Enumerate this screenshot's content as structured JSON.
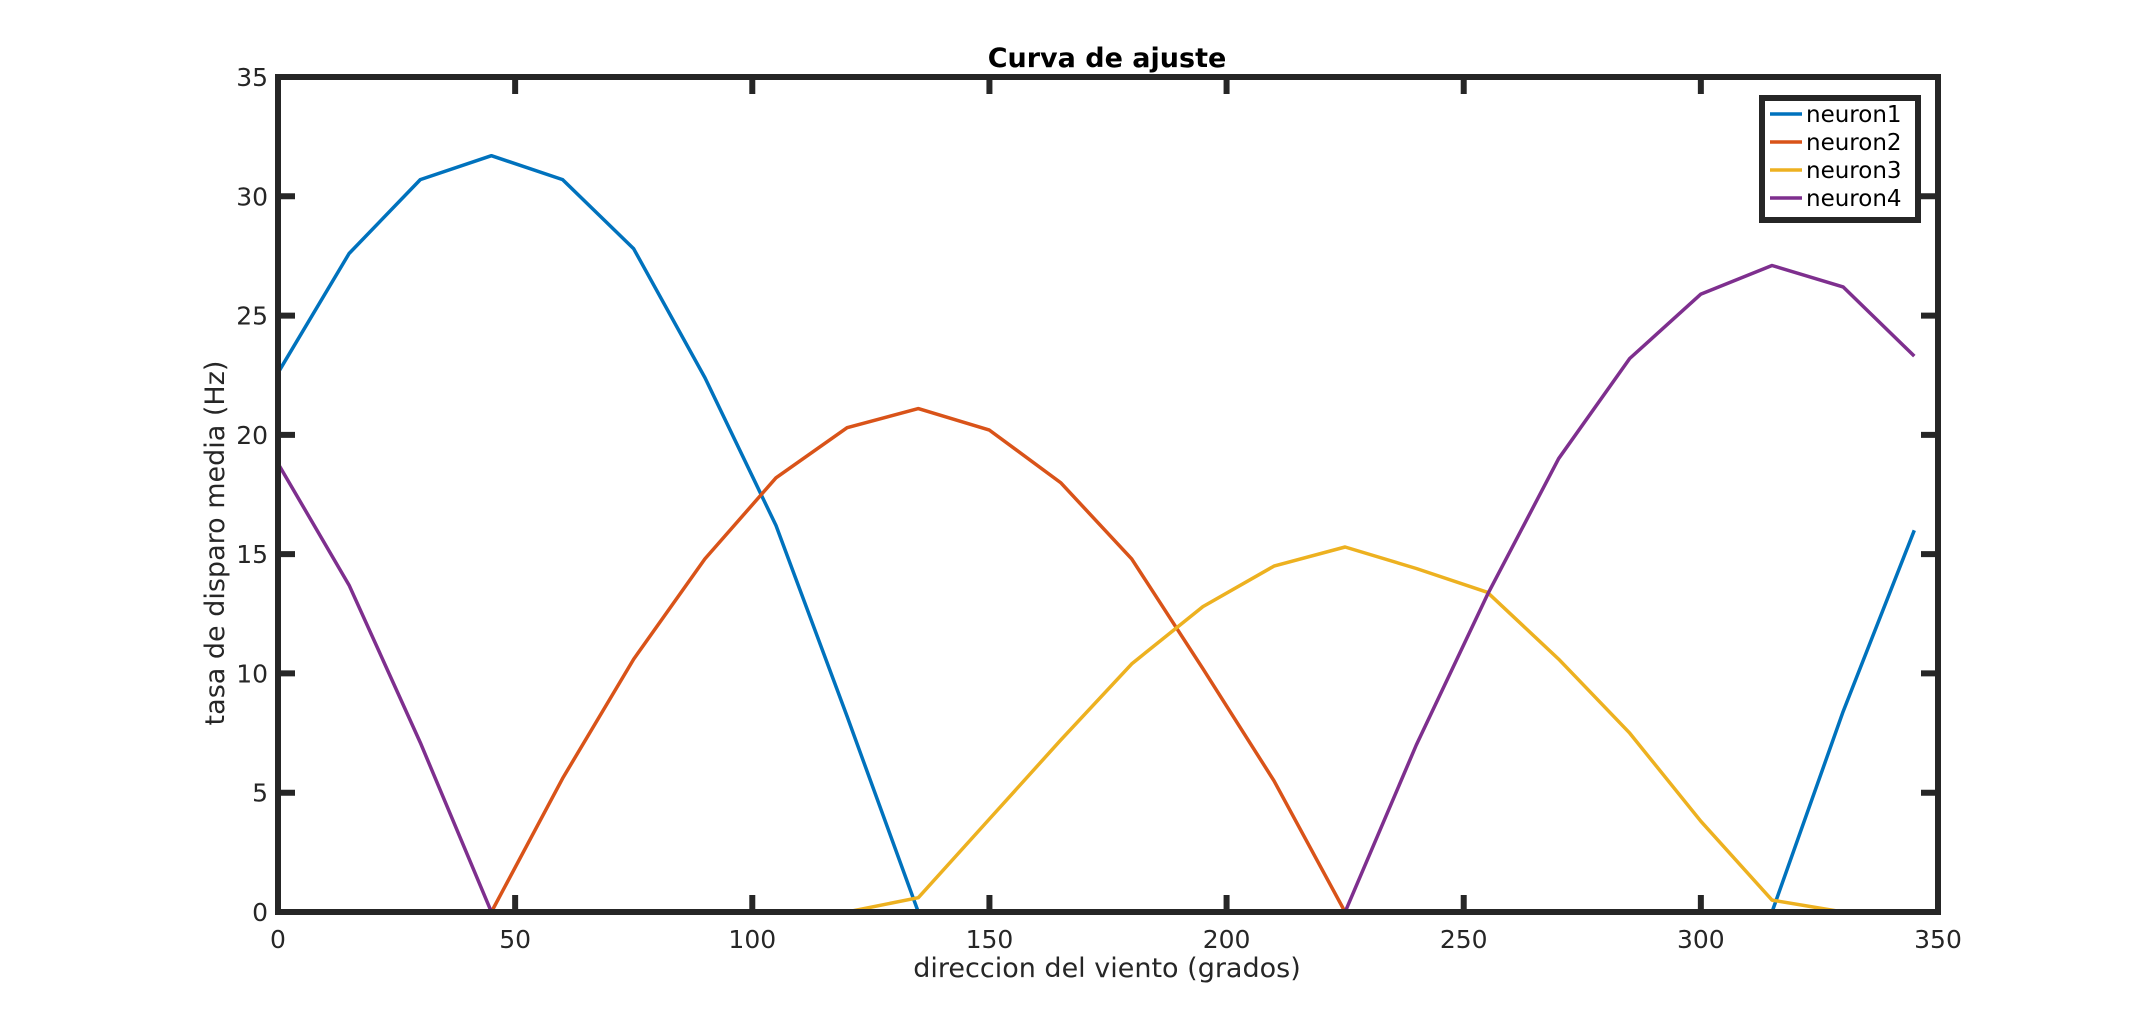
{
  "chart_data": {
    "type": "line",
    "title": "Curva de ajuste",
    "xlabel": "direccion del viento (grados)",
    "ylabel": "tasa de disparo media (Hz)",
    "xlim": [
      0,
      350
    ],
    "ylim": [
      0,
      35
    ],
    "xticks": [
      0,
      50,
      100,
      150,
      200,
      250,
      300,
      350
    ],
    "yticks": [
      0,
      5,
      10,
      15,
      20,
      25,
      30,
      35
    ],
    "grid": false,
    "legend_position": "top-right",
    "x": [
      0,
      15,
      30,
      45,
      60,
      75,
      90,
      105,
      120,
      135,
      150,
      165,
      180,
      195,
      210,
      225,
      240,
      255,
      270,
      285,
      300,
      315,
      330,
      345
    ],
    "series": [
      {
        "name": "neuron1",
        "color": "#0072BD",
        "values": [
          22.6,
          27.6,
          30.7,
          31.7,
          30.7,
          27.8,
          22.4,
          16.2,
          8.2,
          0,
          0,
          0,
          0,
          0,
          0,
          0,
          0,
          0,
          0,
          0,
          0,
          0,
          8.4,
          16.0
        ]
      },
      {
        "name": "neuron2",
        "color": "#D95319",
        "values": [
          0,
          0,
          0,
          0,
          5.6,
          10.6,
          14.8,
          18.2,
          20.3,
          21.1,
          20.2,
          18.0,
          14.8,
          10.2,
          5.5,
          0,
          0,
          0,
          0,
          0,
          0,
          0,
          0,
          0
        ]
      },
      {
        "name": "neuron3",
        "color": "#EDB120",
        "values": [
          0,
          0,
          0,
          0,
          0,
          0,
          0,
          0,
          0,
          0.6,
          3.9,
          7.2,
          10.4,
          12.8,
          14.5,
          15.3,
          14.4,
          13.4,
          10.6,
          7.5,
          3.8,
          0.5,
          0,
          0
        ]
      },
      {
        "name": "neuron4",
        "color": "#7E2F8E",
        "values": [
          18.8,
          13.7,
          7.1,
          0,
          0,
          0,
          0,
          0,
          0,
          0,
          0,
          0,
          0,
          0,
          0,
          0,
          7.0,
          13.3,
          19.0,
          23.2,
          25.9,
          27.1,
          26.2,
          23.3
        ]
      }
    ]
  }
}
